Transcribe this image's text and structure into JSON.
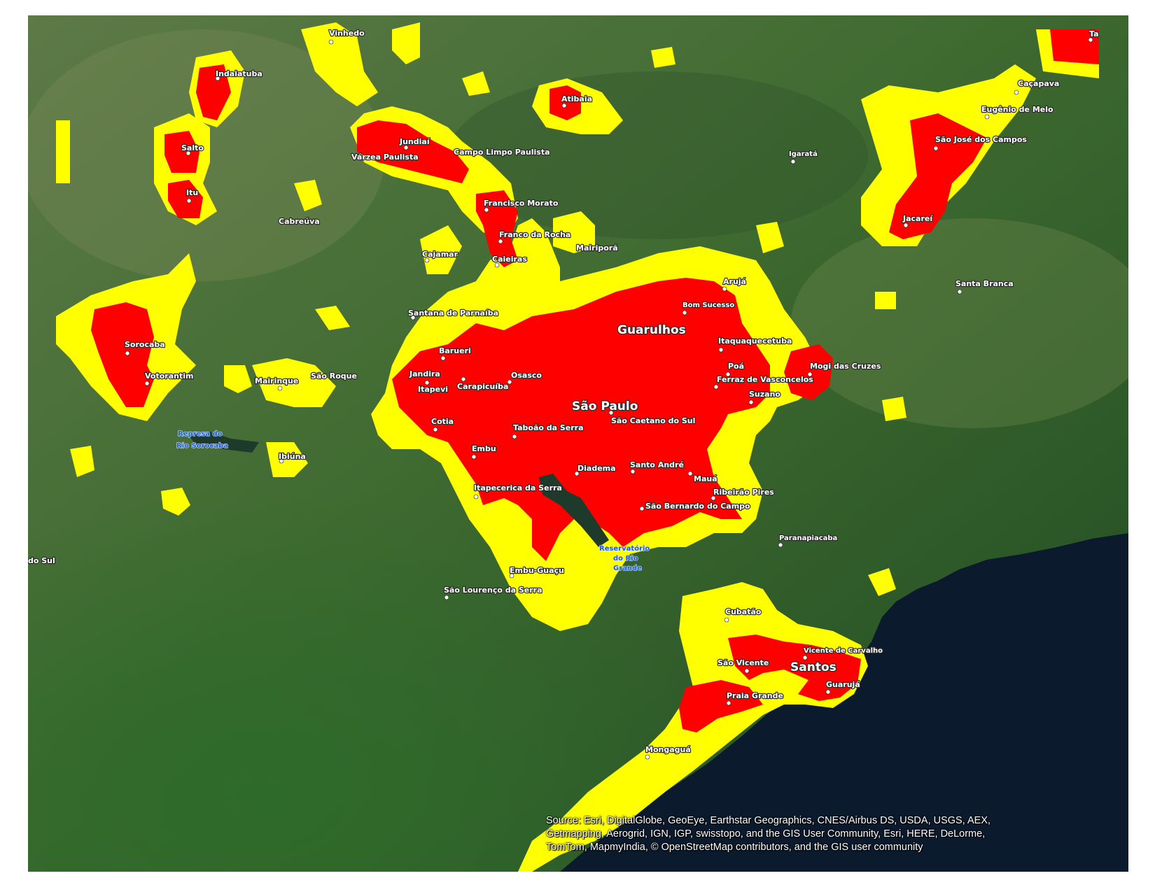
{
  "map": {
    "basemap": "satellite imagery",
    "colors": {
      "urban_core": "#ff0000",
      "urban_buffer": "#ffff00",
      "ocean": "#0c1a2e",
      "land": "#3f6a32"
    }
  },
  "labels": {
    "sao_paulo": "São Paulo",
    "guarulhos": "Guarulhos",
    "santos": "Santos",
    "vinhedo": "Vinhedo",
    "indaiatuba": "Indaiatuba",
    "atibaia": "Atibaia",
    "jundiai": "Jundiaí",
    "varzea_paulista": "Várzea Paulista",
    "campo_limpo_paulista": "Campo Limpo Paulista",
    "salto": "Salto",
    "itu": "Itu",
    "cabreuva": "Cabreúva",
    "francisco_morato": "Francisco Morato",
    "franco_da_rocha": "Franco da Rocha",
    "mairipora": "Mairiporã",
    "cajamar": "Cajamar",
    "caieiras": "Caieiras",
    "sorocaba": "Sorocaba",
    "votorantim": "Votorantim",
    "mairinque": "Mairinque",
    "sao_roque": "São Roque",
    "santana_de_parnaiba": "Santana de Parnaíba",
    "barueri": "Barueri",
    "jandira": "Jandira",
    "itapevi": "Itapevi",
    "carapicuiba": "Carapicuíba",
    "osasco": "Osasco",
    "cotia": "Cotia",
    "taboao_da_serra": "Taboão da Serra",
    "sao_caetano_do_sul": "São Caetano do Sul",
    "embu": "Embu",
    "diadema": "Diadema",
    "santo_andre": "Santo André",
    "maua": "Mauá",
    "ribeirao_pires": "Ribeirão Pires",
    "itapecerica_da_serra": "Itapecerica da Serra",
    "sao_bernardo_do_campo": "São Bernardo do Campo",
    "ibiuna": "Ibiúna",
    "embu_guacu": "Embu-Guaçu",
    "sao_lourenco_da_serra": "São Lourenço da Serra",
    "arujá": "Arujá",
    "bom_sucesso": "Bom Sucesso",
    "itaquaquecetuba": "Itaquaquecetuba",
    "poa": "Poá",
    "ferraz_de_vasconcelos": "Ferraz de Vasconcelos",
    "suzano": "Suzano",
    "mogi_das_cruzes": "Mogi das Cruzes",
    "cacapava": "Caçapava",
    "eugenio_de_melo": "Eugênio de Melo",
    "sao_jose_dos_campos": "São José dos Campos",
    "jacarei": "Jacareí",
    "igarata": "Igaratá",
    "santa_branca": "Santa Branca",
    "paranapiacaba": "Paranapiacaba",
    "cubatao": "Cubatão",
    "vicente_de_carvalho": "Vicente de Carvalho",
    "sao_vicente": "São Vicente",
    "guaruja": "Guarujá",
    "praia_grande": "Praia Grande",
    "mongagua": "Mongaguá",
    "do_sul": "do Sul",
    "ta": "Ta",
    "represa_sorocaba_1": "Represa do",
    "represa_sorocaba_2": "Rio Sorocaba",
    "reservatorio_1": "Reservatório",
    "reservatorio_2": "do Rio",
    "reservatorio_3": "Grande"
  },
  "attribution": {
    "lines": [
      "Source: Esri, DigitalGlobe, GeoEye, Earthstar Geographics, CNES/Airbus DS, USDA, USGS, AEX,",
      "Getmapping, Aerogrid, IGN, IGP, swisstopo, and the GIS User Community, Esri, HERE, DeLorme,",
      "TomTom, MapmyIndia, © OpenStreetMap contributors, and the GIS user community"
    ]
  }
}
